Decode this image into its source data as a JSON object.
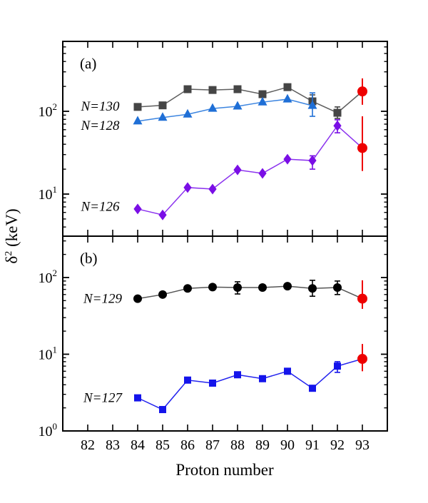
{
  "ylabel_parts": {
    "base": "δ",
    "sup": "2",
    "unit": " (keV)"
  },
  "chart_data": [
    {
      "type": "line",
      "panel": "a",
      "tag": "(a)",
      "xlabel": "Proton number",
      "ylabel": "δ2 (keV)",
      "yscale": "log",
      "grid": false,
      "legend_position": "inline-labels",
      "xlim": [
        81,
        94
      ],
      "ylim": [
        3.1,
        700
      ],
      "x_ticks": [
        82,
        83,
        84,
        85,
        86,
        87,
        88,
        89,
        90,
        91,
        92,
        93
      ],
      "y_major_ticks": [
        10,
        100
      ],
      "highlight_color": "#ee0000",
      "series": [
        {
          "name": "N=130",
          "label": "N=130",
          "label_anchor": {
            "x": 82.5,
            "y": 115
          },
          "marker": "square",
          "marker_size": 11,
          "color": "#454545",
          "line_color": "#5e5e5e",
          "points": [
            {
              "x": 84,
              "y": 113
            },
            {
              "x": 85,
              "y": 118
            },
            {
              "x": 86,
              "y": 185
            },
            {
              "x": 87,
              "y": 181
            },
            {
              "x": 88,
              "y": 185
            },
            {
              "x": 89,
              "y": 161
            },
            {
              "x": 90,
              "y": 196
            },
            {
              "x": 91,
              "y": 132,
              "lo": 110,
              "hi": 158
            },
            {
              "x": 92,
              "y": 96,
              "lo": 82,
              "hi": 113
            },
            {
              "x": 93,
              "y": 174,
              "lo": 120,
              "hi": 250,
              "red": true
            }
          ]
        },
        {
          "name": "N=128",
          "label": "N=128",
          "label_anchor": {
            "x": 82.5,
            "y": 67
          },
          "marker": "triangle",
          "marker_size": 13,
          "color": "#1f6fd6",
          "line_color": "#3c85e0",
          "points": [
            {
              "x": 84,
              "y": 76
            },
            {
              "x": 85,
              "y": 84
            },
            {
              "x": 86,
              "y": 92
            },
            {
              "x": 87,
              "y": 108
            },
            {
              "x": 88,
              "y": 115
            },
            {
              "x": 89,
              "y": 129
            },
            {
              "x": 90,
              "y": 140
            },
            {
              "x": 91,
              "y": 117,
              "lo": 87,
              "hi": 167
            }
          ]
        },
        {
          "name": "N=126",
          "label": "N=126",
          "label_anchor": {
            "x": 82.5,
            "y": 7.1
          },
          "marker": "diamond",
          "marker_size": 15,
          "color": "#7a0ee6",
          "line_color": "#8b32ee",
          "points": [
            {
              "x": 84,
              "y": 6.6
            },
            {
              "x": 85,
              "y": 5.6
            },
            {
              "x": 86,
              "y": 12.0
            },
            {
              "x": 87,
              "y": 11.5
            },
            {
              "x": 88,
              "y": 19.6
            },
            {
              "x": 89,
              "y": 17.8
            },
            {
              "x": 90,
              "y": 26.4
            },
            {
              "x": 91,
              "y": 25.4,
              "lo": 20,
              "hi": 29
            },
            {
              "x": 92,
              "y": 67,
              "lo": 55,
              "hi": 79
            },
            {
              "x": 93,
              "y": 36,
              "lo": 19,
              "hi": 87,
              "red": true
            }
          ]
        }
      ]
    },
    {
      "type": "line",
      "panel": "b",
      "tag": "(b)",
      "xlabel": "Proton number",
      "ylabel": "δ2 (keV)",
      "yscale": "log",
      "grid": false,
      "legend_position": "inline-labels",
      "xlim": [
        81,
        94
      ],
      "ylim": [
        1,
        346
      ],
      "x_ticks": [
        82,
        83,
        84,
        85,
        86,
        87,
        88,
        89,
        90,
        91,
        92,
        93
      ],
      "y_major_ticks": [
        1,
        10,
        100
      ],
      "highlight_color": "#ee0000",
      "series": [
        {
          "name": "N=129",
          "label": "N=129",
          "label_anchor": {
            "x": 82.6,
            "y": 53
          },
          "marker": "circle",
          "marker_size": 12,
          "color": "#000000",
          "line_color": "#555555",
          "points": [
            {
              "x": 84,
              "y": 53
            },
            {
              "x": 85,
              "y": 60
            },
            {
              "x": 86,
              "y": 72
            },
            {
              "x": 87,
              "y": 75
            },
            {
              "x": 88,
              "y": 74,
              "lo": 61,
              "hi": 88
            },
            {
              "x": 89,
              "y": 74
            },
            {
              "x": 90,
              "y": 77
            },
            {
              "x": 91,
              "y": 72,
              "lo": 57,
              "hi": 92
            },
            {
              "x": 92,
              "y": 74,
              "lo": 60,
              "hi": 90
            },
            {
              "x": 93,
              "y": 53,
              "lo": 39,
              "hi": 92,
              "red": true
            }
          ]
        },
        {
          "name": "N=127",
          "label": "N=127",
          "label_anchor": {
            "x": 82.6,
            "y": 2.7
          },
          "marker": "square",
          "marker_size": 10,
          "color": "#1414eb",
          "line_color": "#2222ee",
          "points": [
            {
              "x": 84,
              "y": 2.7
            },
            {
              "x": 85,
              "y": 1.9
            },
            {
              "x": 86,
              "y": 4.6
            },
            {
              "x": 87,
              "y": 4.2
            },
            {
              "x": 88,
              "y": 5.4
            },
            {
              "x": 89,
              "y": 4.8
            },
            {
              "x": 90,
              "y": 6.0
            },
            {
              "x": 91,
              "y": 3.6
            },
            {
              "x": 92,
              "y": 7.0,
              "lo": 5.8,
              "hi": 8.0
            },
            {
              "x": 93,
              "y": 8.7,
              "lo": 6.0,
              "hi": 13.6,
              "red": true
            }
          ]
        }
      ]
    }
  ]
}
